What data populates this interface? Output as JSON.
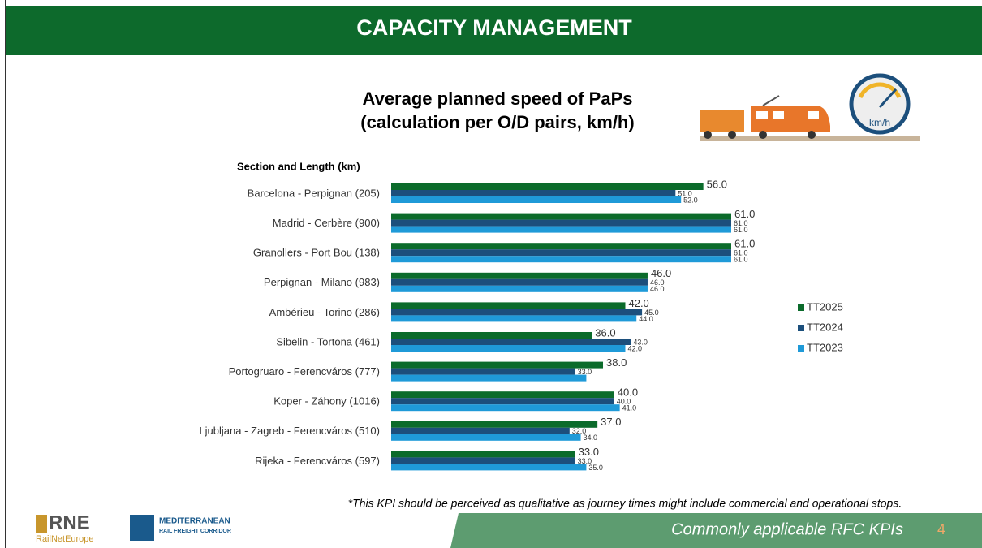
{
  "header": {
    "title": "CAPACITY MANAGEMENT"
  },
  "chart_data": {
    "type": "bar",
    "orientation": "horizontal",
    "title": "Average planned speed of PaPs",
    "subtitle": "(calculation per O/D pairs, km/h)",
    "y_label": "Section and Length (km)",
    "categories": [
      "Barcelona - Perpignan (205)",
      "Madrid - Cerbère (900)",
      "Granollers - Port Bou (138)",
      "Perpignan - Milano (983)",
      "Ambérieu - Torino (286)",
      "Sibelin - Tortona (461)",
      "Portogruaro - Ferencváros (777)",
      "Koper - Záhony (1016)",
      "Ljubljana - Zagreb - Ferencváros (510)",
      "Rijeka - Ferencváros (597)"
    ],
    "series": [
      {
        "name": "TT2025",
        "color": "#0b6b2b",
        "values": [
          56,
          61,
          61,
          46,
          42,
          36,
          38,
          40,
          37,
          33
        ],
        "value_labels": [
          "56.0",
          "61.0",
          "61.0",
          "46.0",
          "42.0",
          "36.0",
          "38.0",
          "40.0",
          "37.0",
          "33.0"
        ]
      },
      {
        "name": "TT2024",
        "color": "#1c4f7c",
        "values": [
          51,
          61,
          61,
          46,
          45,
          43,
          33,
          40,
          32,
          33
        ],
        "value_labels": [
          "51.0",
          "61.0",
          "61.0",
          "46.0",
          "45.0",
          "43.0",
          "33.0",
          "40.0",
          "32.0",
          "33.0"
        ]
      },
      {
        "name": "TT2023",
        "color": "#1f9ad8",
        "values": [
          52,
          61,
          61,
          46,
          44,
          42,
          35,
          41,
          34,
          35
        ],
        "value_labels": [
          "52.0",
          "61.0",
          "61.0",
          "46.0",
          "44.0",
          "42.0",
          null,
          "41.0",
          "34.0",
          "35.0"
        ]
      }
    ],
    "legend": "right",
    "grid": false
  },
  "icon": {
    "gauge": "km/h"
  },
  "footnote": "*This KPI should be perceived as qualitative as journey times might include commercial and operational stops.",
  "footer": {
    "text": "Commonly applicable RFC KPIs",
    "page": "4"
  },
  "logos": {
    "rne": "RNE",
    "rne_sub": "RailNetEurope",
    "med": "MEDITERRANEAN",
    "med_sub": "RAIL FREIGHT CORRIDOR"
  }
}
